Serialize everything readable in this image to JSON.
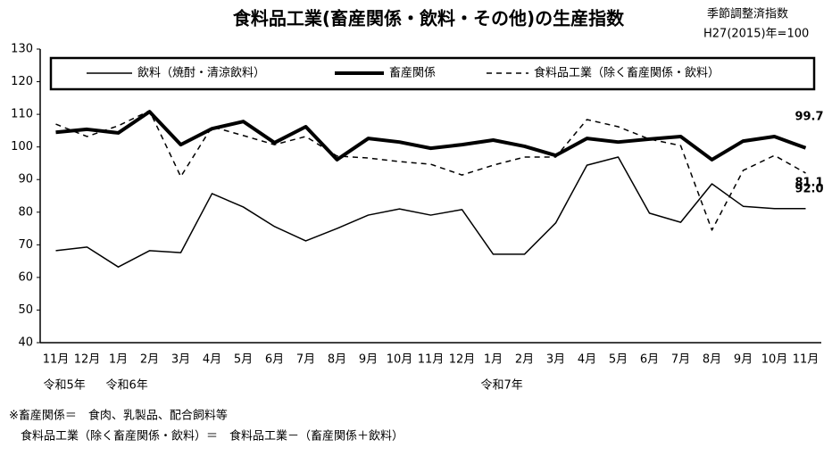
{
  "chart_data": {
    "type": "line",
    "title": "食料品工業(畜産関係・飲料・その他)の生産指数",
    "note": [
      "季節調整済指数",
      "H27(2015)年=100"
    ],
    "categories": [
      "11月",
      "12月",
      "1月",
      "2月",
      "3月",
      "4月",
      "5月",
      "6月",
      "7月",
      "8月",
      "9月",
      "10月",
      "11月",
      "12月",
      "1月",
      "2月",
      "3月",
      "4月",
      "5月",
      "6月",
      "7月",
      "8月",
      "9月",
      "10月",
      "11月"
    ],
    "year_labels": [
      "令和5年",
      null,
      "令和6年",
      null,
      null,
      null,
      null,
      null,
      null,
      null,
      null,
      null,
      null,
      null,
      "令和7年",
      null,
      null,
      null,
      null,
      null,
      null,
      null,
      null,
      null,
      null
    ],
    "ylim": [
      40,
      130
    ],
    "yticks": [
      40,
      50,
      60,
      70,
      80,
      90,
      100,
      110,
      120,
      130
    ],
    "grid": false,
    "series": [
      {
        "name": "飲料（焼酎・清涼飲料）",
        "color": "#000000",
        "line_style": "thin",
        "values": [
          68.2,
          69.3,
          63.2,
          68.2,
          67.6,
          85.7,
          81.6,
          75.6,
          71.2,
          75.0,
          79.1,
          81.0,
          79.1,
          80.8,
          67.1,
          67.1,
          76.7,
          94.4,
          96.9,
          79.7,
          76.9,
          88.7,
          81.8,
          81.1,
          81.1
        ],
        "value_labels": [
          null,
          null,
          null,
          null,
          null,
          null,
          null,
          null,
          null,
          null,
          null,
          null,
          null,
          null,
          null,
          null,
          null,
          null,
          null,
          null,
          null,
          null,
          null,
          null,
          "81.1"
        ]
      },
      {
        "name": "畜産関係",
        "color": "#000000",
        "line_style": "thick",
        "values": [
          104.5,
          105.4,
          104.3,
          110.8,
          100.7,
          105.6,
          107.8,
          101.3,
          106.2,
          96.1,
          102.6,
          101.5,
          99.6,
          100.7,
          102.1,
          100.2,
          97.4,
          102.6,
          101.5,
          102.4,
          103.2,
          96.1,
          101.8,
          103.2,
          99.7
        ],
        "value_labels": [
          null,
          null,
          null,
          null,
          null,
          null,
          null,
          null,
          null,
          null,
          null,
          null,
          null,
          null,
          null,
          null,
          null,
          null,
          null,
          null,
          null,
          null,
          null,
          null,
          "99.7"
        ]
      },
      {
        "name": "食料品工業（除く畜産関係・飲料）",
        "color": "#000000",
        "line_style": "dashed",
        "values": [
          107.0,
          103.2,
          106.5,
          111.1,
          90.9,
          106.2,
          103.5,
          100.7,
          103.2,
          97.2,
          96.6,
          95.5,
          94.7,
          91.4,
          94.4,
          96.9,
          96.9,
          108.4,
          106.2,
          102.4,
          100.4,
          74.5,
          92.8,
          97.4,
          92.0
        ],
        "value_labels": [
          null,
          null,
          null,
          null,
          null,
          null,
          null,
          null,
          null,
          null,
          null,
          null,
          null,
          null,
          null,
          null,
          null,
          null,
          null,
          null,
          null,
          null,
          null,
          null,
          "92.0"
        ]
      }
    ],
    "footnotes": [
      "※畜産関係＝　食肉、乳製品、配合飼料等",
      "　食料品工業（除く畜産関係・飲料）＝　食料品工業－（畜産関係＋飲料）"
    ]
  }
}
